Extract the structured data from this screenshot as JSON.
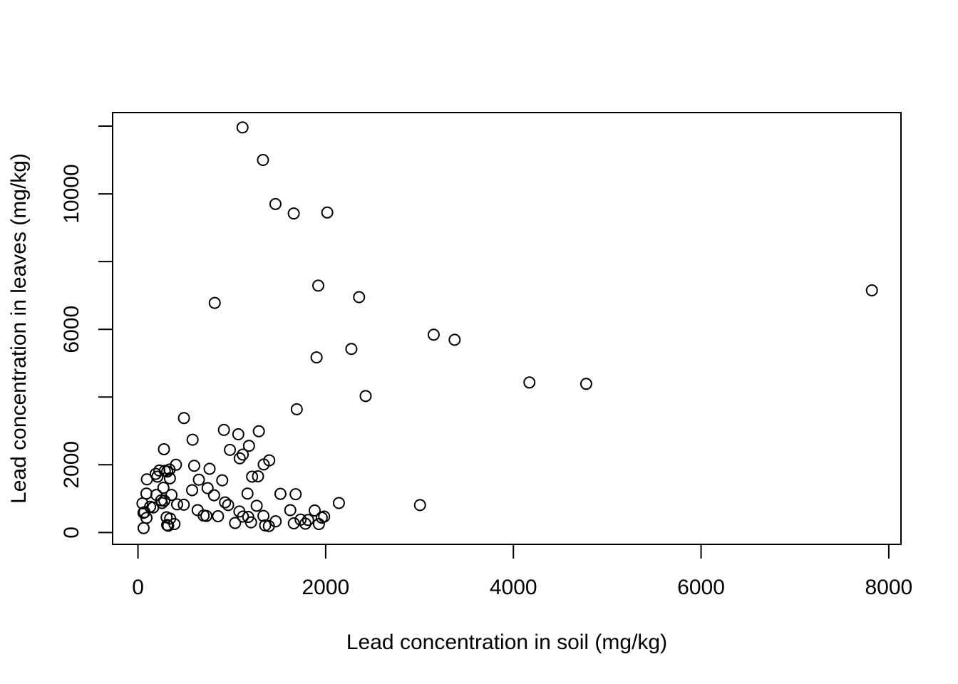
{
  "chart_data": {
    "type": "scatter",
    "xlabel": "Lead concentration in soil (mg/kg)",
    "ylabel": "Lead concentration in leaves (mg/kg)",
    "xlim": [
      -270,
      8130
    ],
    "ylim": [
      -350,
      12400
    ],
    "x_ticks": [
      0,
      2000,
      4000,
      6000,
      8000
    ],
    "x_tick_labels": [
      "0",
      "2000",
      "4000",
      "6000",
      "8000"
    ],
    "y_ticks": [
      0,
      2000,
      4000,
      6000,
      8000,
      10000,
      12000
    ],
    "y_tick_labels": [
      "0",
      "2000",
      "",
      "6000",
      "",
      "10000",
      ""
    ],
    "grid": false,
    "legend": "none",
    "marker": "open-circle",
    "color": "#000000",
    "points": [
      [
        1114,
        11960
      ],
      [
        1332,
        11000
      ],
      [
        1465,
        9700
      ],
      [
        1660,
        9420
      ],
      [
        2017,
        9450
      ],
      [
        818,
        6780
      ],
      [
        1921,
        7290
      ],
      [
        2356,
        6950
      ],
      [
        7820,
        7150
      ],
      [
        3151,
        5840
      ],
      [
        3374,
        5690
      ],
      [
        1903,
        5170
      ],
      [
        2274,
        5420
      ],
      [
        4171,
        4430
      ],
      [
        4776,
        4390
      ],
      [
        2426,
        4030
      ],
      [
        1692,
        3640
      ],
      [
        490,
        3380
      ],
      [
        916,
        3030
      ],
      [
        1069,
        2900
      ],
      [
        1288,
        2990
      ],
      [
        582,
        2740
      ],
      [
        277,
        2460
      ],
      [
        980,
        2440
      ],
      [
        1117,
        2300
      ],
      [
        1183,
        2560
      ],
      [
        1084,
        2190
      ],
      [
        1399,
        2130
      ],
      [
        1340,
        2010
      ],
      [
        405,
        2000
      ],
      [
        599,
        1970
      ],
      [
        763,
        1880
      ],
      [
        336,
        1860
      ],
      [
        286,
        1820
      ],
      [
        311,
        1800
      ],
      [
        228,
        1830
      ],
      [
        189,
        1730
      ],
      [
        207,
        1650
      ],
      [
        95,
        1570
      ],
      [
        340,
        1600
      ],
      [
        649,
        1560
      ],
      [
        898,
        1540
      ],
      [
        1216,
        1650
      ],
      [
        1279,
        1660
      ],
      [
        271,
        1320
      ],
      [
        742,
        1310
      ],
      [
        577,
        1250
      ],
      [
        1167,
        1150
      ],
      [
        1518,
        1140
      ],
      [
        1680,
        1130
      ],
      [
        90,
        1150
      ],
      [
        197,
        1110
      ],
      [
        357,
        1110
      ],
      [
        811,
        1100
      ],
      [
        248,
        950
      ],
      [
        281,
        940
      ],
      [
        928,
        890
      ],
      [
        256,
        870
      ],
      [
        48,
        860
      ],
      [
        162,
        740
      ],
      [
        129,
        760
      ],
      [
        417,
        830
      ],
      [
        488,
        820
      ],
      [
        961,
        810
      ],
      [
        1265,
        790
      ],
      [
        2141,
        870
      ],
      [
        3005,
        810
      ],
      [
        636,
        660
      ],
      [
        1081,
        620
      ],
      [
        1623,
        660
      ],
      [
        1883,
        650
      ],
      [
        70,
        600
      ],
      [
        59,
        580
      ],
      [
        700,
        500
      ],
      [
        729,
        490
      ],
      [
        853,
        480
      ],
      [
        1337,
        490
      ],
      [
        1119,
        470
      ],
      [
        1175,
        460
      ],
      [
        1984,
        470
      ],
      [
        1958,
        440
      ],
      [
        305,
        450
      ],
      [
        91,
        430
      ],
      [
        343,
        410
      ],
      [
        1733,
        380
      ],
      [
        1813,
        370
      ],
      [
        1467,
        330
      ],
      [
        1205,
        300
      ],
      [
        1035,
        280
      ],
      [
        1661,
        270
      ],
      [
        1784,
        260
      ],
      [
        1928,
        250
      ],
      [
        389,
        250
      ],
      [
        311,
        220
      ],
      [
        322,
        200
      ],
      [
        1355,
        210
      ],
      [
        1395,
        190
      ],
      [
        60,
        130
      ]
    ]
  }
}
